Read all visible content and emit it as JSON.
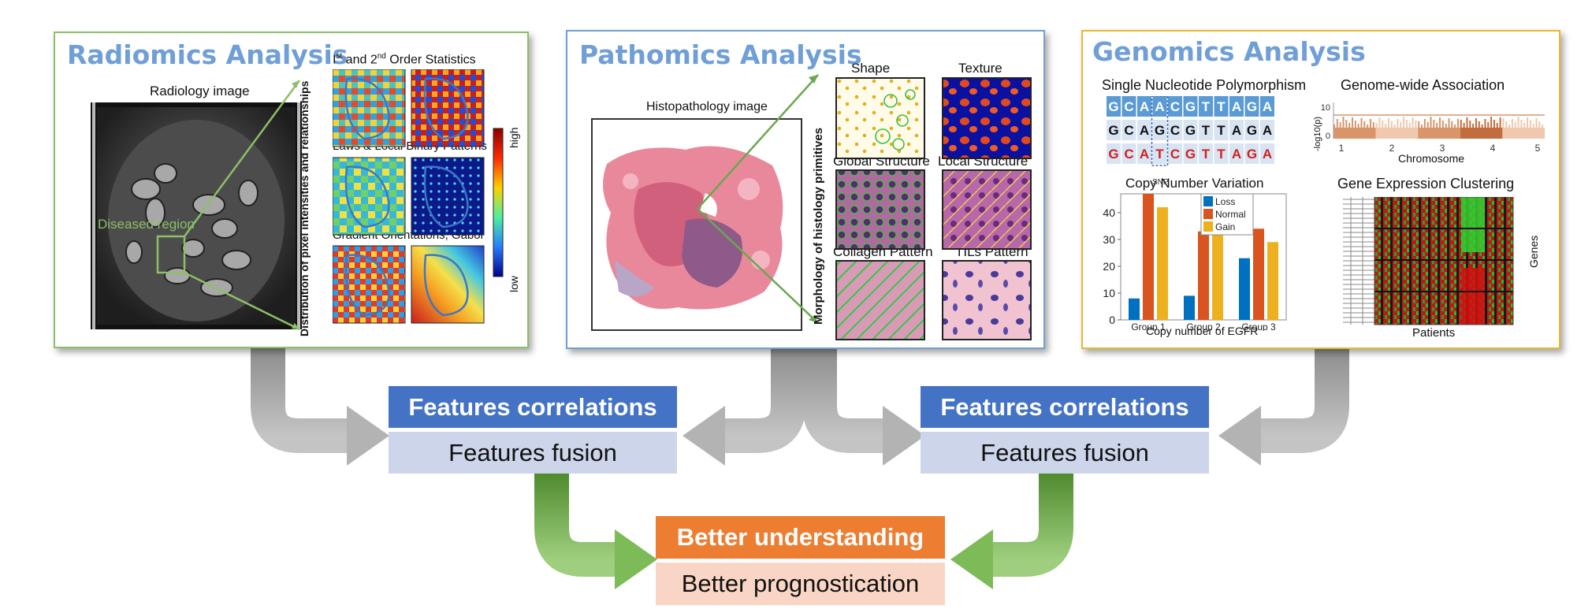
{
  "radiomics": {
    "title": "Radiomics Analysis",
    "image_label": "Radiology image",
    "region_label": "Diseased region",
    "vertical_label": "Distribution of pixel intensities and relationships",
    "feature1_pre": "I",
    "feature1_sup1": "st",
    "feature1_mid": " and 2",
    "feature1_sup2": "nd",
    "feature1_post": " Order Statistics",
    "feature2": "Laws & Local Binary Patterns",
    "feature3": "Gradient Orientations, Gabor",
    "colorbar_high": "high",
    "colorbar_low": "low"
  },
  "pathomics": {
    "title": "Pathomics Analysis",
    "image_label": "Histopathology image",
    "vertical_label": "Morphology of histology primitives",
    "tiles": [
      "Shape",
      "Texture",
      "Global Structure",
      "Local Structure",
      "Collagen Pattern",
      "TILs Pattern"
    ]
  },
  "genomics": {
    "title": "Genomics Analysis",
    "snp_title": "Single Nucleotide Polymorphism",
    "snp_rows": [
      [
        "G",
        "C",
        "A",
        "A",
        "C",
        "G",
        "T",
        "T",
        "A",
        "G",
        "A"
      ],
      [
        "G",
        "C",
        "A",
        "G",
        "C",
        "G",
        "T",
        "T",
        "A",
        "G",
        "A"
      ],
      [
        "G",
        "C",
        "A",
        "T",
        "C",
        "G",
        "T",
        "T",
        "A",
        "G",
        "A"
      ]
    ],
    "snp_label": "SNP",
    "gwas_title": "Genome-wide Association",
    "gwas_ylabel": "-log10(p)",
    "gwas_xlabel": "Chromosome",
    "gwas_yticks": [
      "10",
      "0"
    ],
    "gwas_xticks": [
      "1",
      "2",
      "3",
      "4",
      "5"
    ],
    "cnv_title": "Copy Number Variation",
    "cnv_xlabel": "Copy number of EGFR",
    "gene_title": "Gene Expression Clustering",
    "gene_ylabel": "Genes",
    "gene_xlabel": "Patients"
  },
  "chart_data": {
    "type": "bar",
    "title": "Copy Number Variation",
    "xlabel": "Copy number of EGFR",
    "ylabel": "",
    "categories": [
      "Group 1",
      "Group 2",
      "Group 3"
    ],
    "series": [
      {
        "name": "Loss",
        "values": [
          8,
          9,
          23
        ]
      },
      {
        "name": "Normal",
        "values": [
          47,
          33,
          34
        ]
      },
      {
        "name": "Gain",
        "values": [
          42,
          45,
          29
        ]
      }
    ],
    "ylim": [
      0,
      47
    ],
    "yticks": [
      0,
      10,
      20,
      30,
      40
    ],
    "legend": "top-center"
  },
  "flow": {
    "correlation_label": "Features correlations",
    "fusion_label": "Features fusion",
    "understanding_label": "Better understanding",
    "prognostication_label": "Better prognostication"
  },
  "colors": {
    "radiomics_border": "#8cbf68",
    "pathomics_border": "#6f9fd6",
    "genomics_border": "#e8b830",
    "correlation_box": "#4472c4",
    "fusion_box": "#cdd5ea",
    "understanding_box": "#ed7d31",
    "prognostication_box": "#f8d5c4",
    "gray_arrow": "#a6a6a6",
    "green_arrow": "#6aa84f",
    "loss": "#0070c0",
    "normal": "#d9541e",
    "gain": "#edb120"
  }
}
